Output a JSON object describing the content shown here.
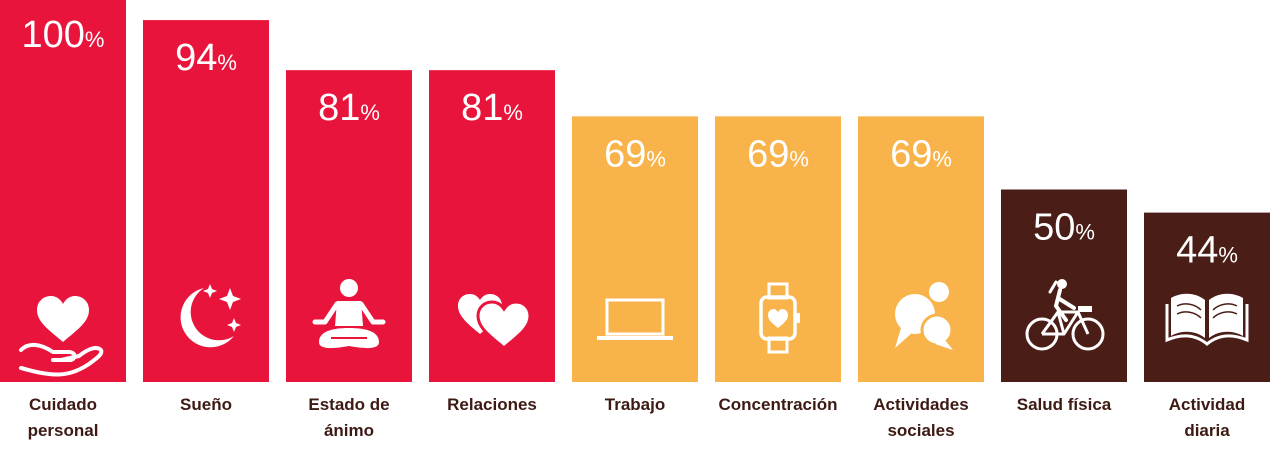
{
  "chart_data": {
    "type": "bar",
    "title": "",
    "xlabel": "",
    "ylabel": "",
    "ylim": [
      0,
      100
    ],
    "unit": "%",
    "categories": [
      "Cuidado personal",
      "Sueño",
      "Estado de ánimo",
      "Relaciones",
      "Trabajo",
      "Concentración",
      "Actividades sociales",
      "Salud física",
      "Actividad diaria"
    ],
    "values": [
      100,
      94,
      81,
      81,
      69,
      69,
      69,
      50,
      44
    ],
    "bars": [
      {
        "label_lines": [
          "Cuidado",
          "personal"
        ],
        "value": 100,
        "color": "#E8143C",
        "icon": "heart-hand-icon"
      },
      {
        "label_lines": [
          "Sueño"
        ],
        "value": 94,
        "color": "#E8143C",
        "icon": "moon-stars-icon"
      },
      {
        "label_lines": [
          "Estado de",
          "ánimo"
        ],
        "value": 81,
        "color": "#E8143C",
        "icon": "meditation-icon"
      },
      {
        "label_lines": [
          "Relaciones"
        ],
        "value": 81,
        "color": "#E8143C",
        "icon": "two-hearts-icon"
      },
      {
        "label_lines": [
          "Trabajo"
        ],
        "value": 69,
        "color": "#F8B34B",
        "icon": "laptop-icon"
      },
      {
        "label_lines": [
          "Concentración"
        ],
        "value": 69,
        "color": "#F8B34B",
        "icon": "smartwatch-heart-icon"
      },
      {
        "label_lines": [
          "Actividades",
          "sociales"
        ],
        "value": 69,
        "color": "#F8B34B",
        "icon": "chat-bubbles-icon"
      },
      {
        "label_lines": [
          "Salud física"
        ],
        "value": 50,
        "color": "#4A1E17",
        "icon": "cyclist-icon"
      },
      {
        "label_lines": [
          "Actividad",
          "diaria"
        ],
        "value": 44,
        "color": "#4A1E17",
        "icon": "open-book-icon"
      }
    ]
  }
}
